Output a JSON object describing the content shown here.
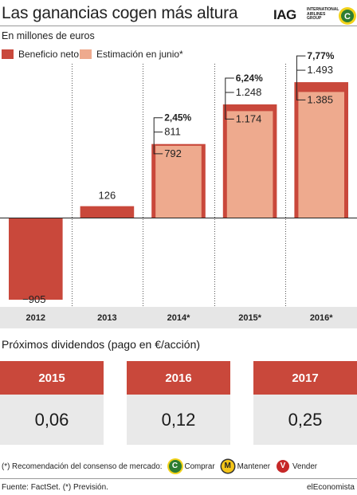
{
  "header": {
    "title": "Las ganancias cogen más altura",
    "subtitle": "En millones de euros",
    "logo_text": "IAG",
    "logo_sub": [
      "INTERNATIONAL",
      "AIRLINES",
      "GROUP"
    ],
    "logo_badge": "C"
  },
  "legend": [
    {
      "label": "Beneficio neto",
      "color": "#c9483b"
    },
    {
      "label": "Estimación en junio*",
      "color": "#eeaa8e"
    }
  ],
  "chart_data": {
    "type": "bar",
    "categories": [
      "2012",
      "2013",
      "2014*",
      "2015*",
      "2016*"
    ],
    "series": [
      {
        "name": "Beneficio neto",
        "values": [
          -905,
          126,
          811,
          1248,
          1493
        ]
      },
      {
        "name": "Estimación en junio*",
        "values": [
          null,
          null,
          792,
          1174,
          1385
        ]
      }
    ],
    "value_labels": {
      "beneficio": [
        "−905",
        "126",
        "811",
        "1.248",
        "1.493"
      ],
      "estimacion": [
        null,
        null,
        "792",
        "1.174",
        "1.385"
      ]
    },
    "pct_labels": [
      null,
      null,
      "2,45%",
      "6,24%",
      "7,77%"
    ],
    "ylim": [
      -1000,
      1700
    ],
    "colors": {
      "beneficio": "#c9483b",
      "estimacion": "#eeaa8e"
    }
  },
  "dividends": {
    "title": "Próximos dividendos (pago en €/acción)",
    "items": [
      {
        "year": "2015",
        "value": "0,06"
      },
      {
        "year": "2016",
        "value": "0,12"
      },
      {
        "year": "2017",
        "value": "0,25"
      }
    ]
  },
  "recommendation": {
    "text": "(*) Recomendación del consenso de mercado:",
    "items": [
      {
        "icon": "C",
        "label": "Comprar",
        "color": "#2e7d32",
        "ring": "#f2d21a"
      },
      {
        "icon": "M",
        "label": "Mantener",
        "color": "#f5c518",
        "ring": "#333333"
      },
      {
        "icon": "V",
        "label": "Vender",
        "color": "#c62828",
        "ring": "#c62828"
      }
    ]
  },
  "footer": {
    "source": "Fuente: FactSet. (*) Previsión.",
    "brand": "elEconomista"
  }
}
